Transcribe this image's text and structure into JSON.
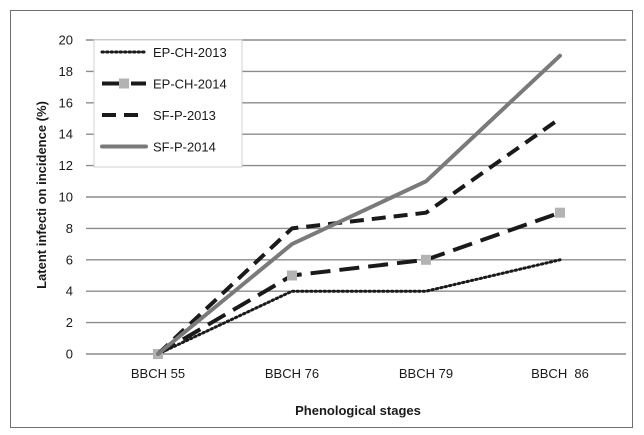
{
  "chart_data": {
    "type": "line",
    "title": "",
    "xlabel": "Phenological stages",
    "ylabel": "Latent infecti on incidence (%)",
    "categories": [
      "BBCH 55",
      "BBCH 76",
      "BBCH 79",
      "BBCH  86"
    ],
    "ylim": [
      0,
      20
    ],
    "yticks": [
      0,
      2,
      4,
      6,
      8,
      10,
      12,
      14,
      16,
      18,
      20
    ],
    "grid": "horizontal",
    "legend_position": "top-left",
    "series": [
      {
        "name": "EP-CH-2013",
        "values": [
          0,
          4,
          4,
          6
        ],
        "color": "#1a1a1a",
        "style": "dotted"
      },
      {
        "name": "EP-CH-2014",
        "values": [
          0,
          5,
          6,
          9
        ],
        "color": "#1a1a1a",
        "style": "long-dash",
        "marker": "square",
        "marker_color": "#b3b3b3"
      },
      {
        "name": "SF-P-2013",
        "values": [
          0,
          8,
          9,
          15
        ],
        "color": "#1a1a1a",
        "style": "dashed"
      },
      {
        "name": "SF-P-2014",
        "values": [
          0,
          7,
          11,
          19
        ],
        "color": "#7a7a7a",
        "style": "solid"
      }
    ]
  }
}
